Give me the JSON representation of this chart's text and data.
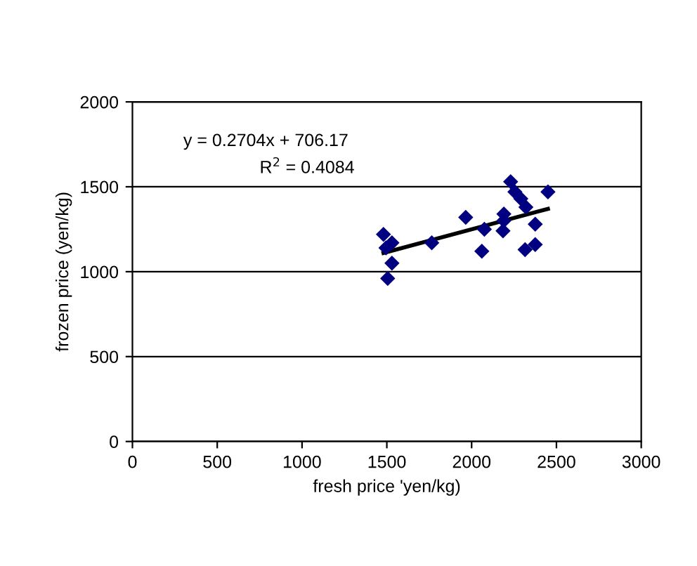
{
  "chart_data": {
    "type": "scatter",
    "xlabel": "fresh price 'yen/kg)",
    "ylabel": "frozen price (yen/kg)",
    "annotations": [
      "y = 0.2704x + 706.17",
      "R$^{2}$ = 0.4084"
    ],
    "xlim": [
      0,
      3000
    ],
    "xticks": [
      0,
      500,
      1000,
      1500,
      2000,
      2500,
      3000
    ],
    "ylim": [
      0,
      2000
    ],
    "yticks": [
      0,
      500,
      1000,
      1500,
      2000
    ],
    "grid": "y",
    "legend": false,
    "marker": "diamond",
    "series": [
      {
        "color": "#000080",
        "x": [
          1480,
          1495,
          1530,
          1530,
          1505,
          1765,
          1965,
          2075,
          2060,
          2190,
          2190,
          2185,
          2230,
          2255,
          2290,
          2320,
          2315,
          2375,
          2375,
          2450
        ],
        "values": [
          1220,
          1140,
          1170,
          1050,
          960,
          1170,
          1320,
          1250,
          1120,
          1340,
          1300,
          1240,
          1530,
          1470,
          1430,
          1380,
          1130,
          1280,
          1160,
          1470
        ]
      },
      {
        "type": "line",
        "marker": "none",
        "color": "#000000",
        "x": [
          1480,
          2450
        ],
        "values": [
          1110,
          1370
        ]
      }
    ]
  }
}
